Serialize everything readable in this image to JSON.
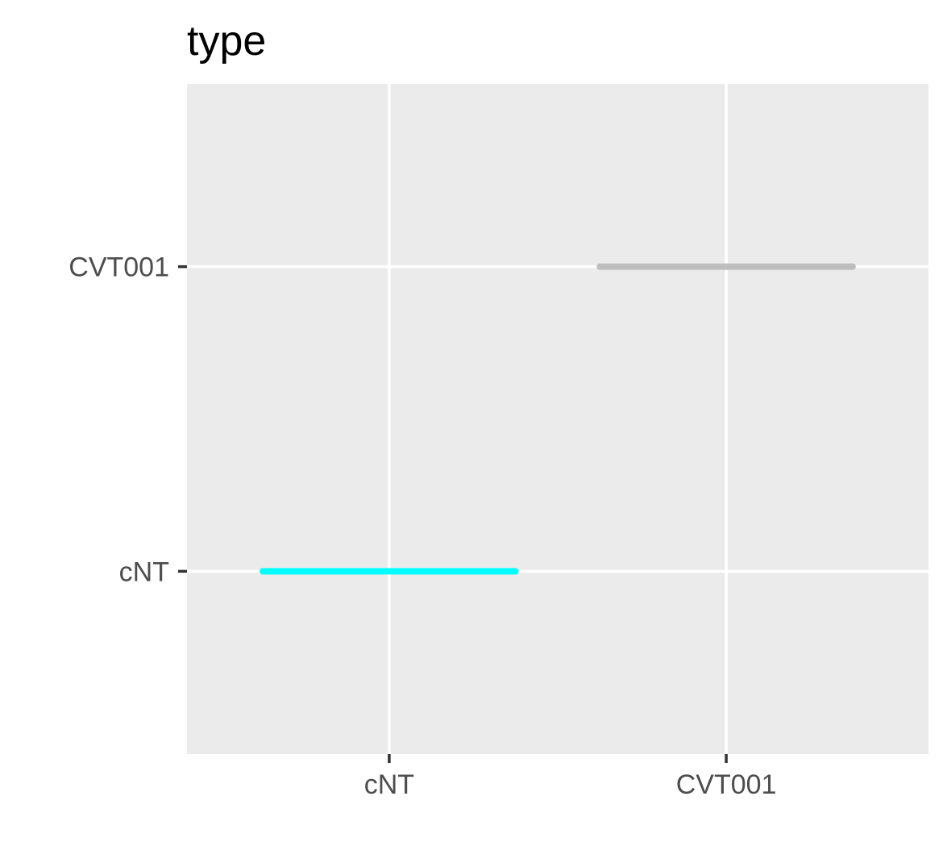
{
  "chart_data": {
    "type": "heatmap",
    "title": "type",
    "xlabel": "",
    "ylabel": "",
    "x_categories": [
      "cNT",
      "CVT001"
    ],
    "y_categories": [
      "cNT",
      "CVT001"
    ],
    "segments": [
      {
        "x": "cNT",
        "y": "cNT",
        "color": "#00ffff"
      },
      {
        "x": "CVT001",
        "y": "CVT001",
        "color": "#bebebe"
      }
    ],
    "grid": true,
    "legend": "none",
    "colors": {
      "panel": "#ebebeb",
      "grid": "#ffffff",
      "tick": "#333333"
    }
  }
}
